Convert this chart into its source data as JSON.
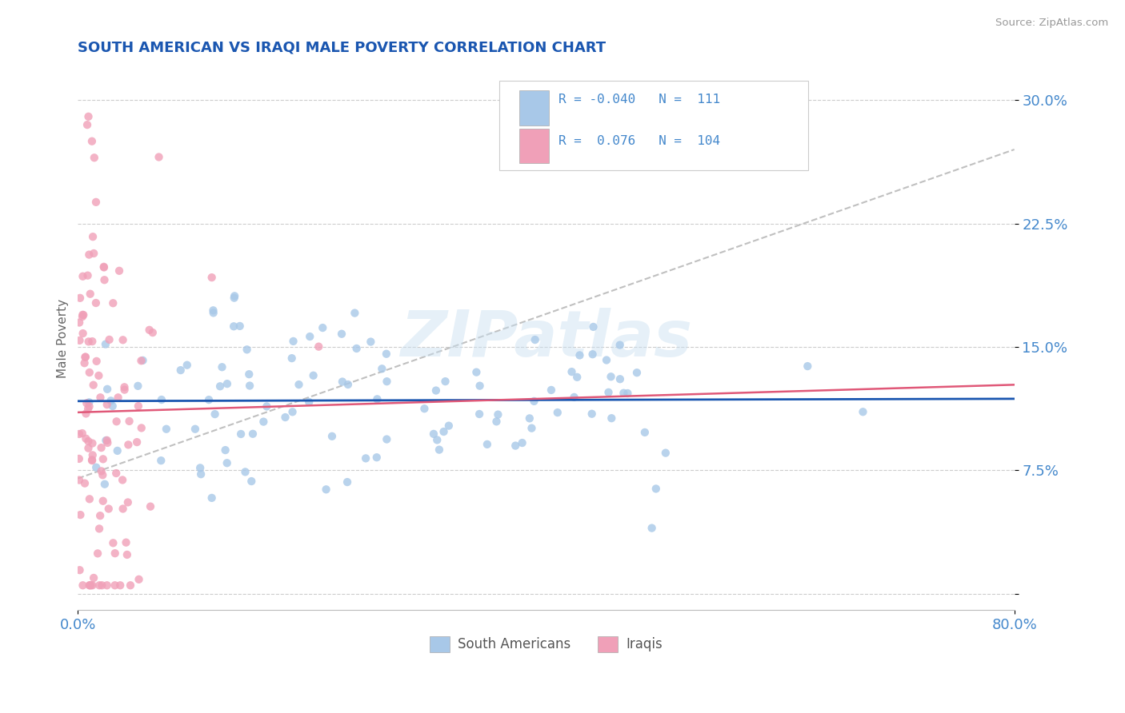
{
  "title": "SOUTH AMERICAN VS IRAQI MALE POVERTY CORRELATION CHART",
  "source": "Source: ZipAtlas.com",
  "ylabel": "Male Poverty",
  "yticks": [
    0.0,
    0.075,
    0.15,
    0.225,
    0.3
  ],
  "ytick_labels": [
    "",
    "7.5%",
    "15.0%",
    "22.5%",
    "30.0%"
  ],
  "xlim": [
    0.0,
    0.8
  ],
  "ylim": [
    -0.01,
    0.32
  ],
  "legend_R1": "-0.040",
  "legend_N1": "111",
  "legend_R2": "0.076",
  "legend_N2": "104",
  "color_sa": "#a8c8e8",
  "color_iq": "#f0a0b8",
  "color_sa_line": "#1a56b0",
  "color_iq_line": "#e05878",
  "color_dashed": "#c0c0c0",
  "watermark_text": "ZIPatlas",
  "background_color": "#ffffff",
  "title_color": "#1a56b0",
  "axis_label_color": "#4488cc",
  "tick_color": "#4488cc",
  "title_fontsize": 13,
  "legend_label1": "South Americans",
  "legend_label2": "Iraqis"
}
